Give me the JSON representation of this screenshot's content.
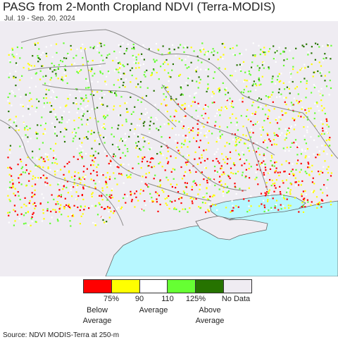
{
  "header": {
    "title": "PASG from 2-Month Cropland NDVI (Terra-MODIS)",
    "date_range": "Jul. 19 - Sep. 20, 2024"
  },
  "legend": {
    "colors": [
      "#ff0000",
      "#ffff00",
      "#ffffff",
      "#66ff33",
      "#267300",
      "#efecf2"
    ],
    "ticks": [
      "75%",
      "90",
      "110",
      "125%",
      "No Data"
    ],
    "below_line1": "Below",
    "below_line2": "Average",
    "average": "Average",
    "above_line1": "Above",
    "above_line2": "Average"
  },
  "map": {
    "land_color": "#efecf2",
    "sea_color": "#b7f7ff",
    "border_color": "#888888"
  },
  "footer": {
    "source": "Source: NDVI MODIS-Terra at 250-m"
  }
}
